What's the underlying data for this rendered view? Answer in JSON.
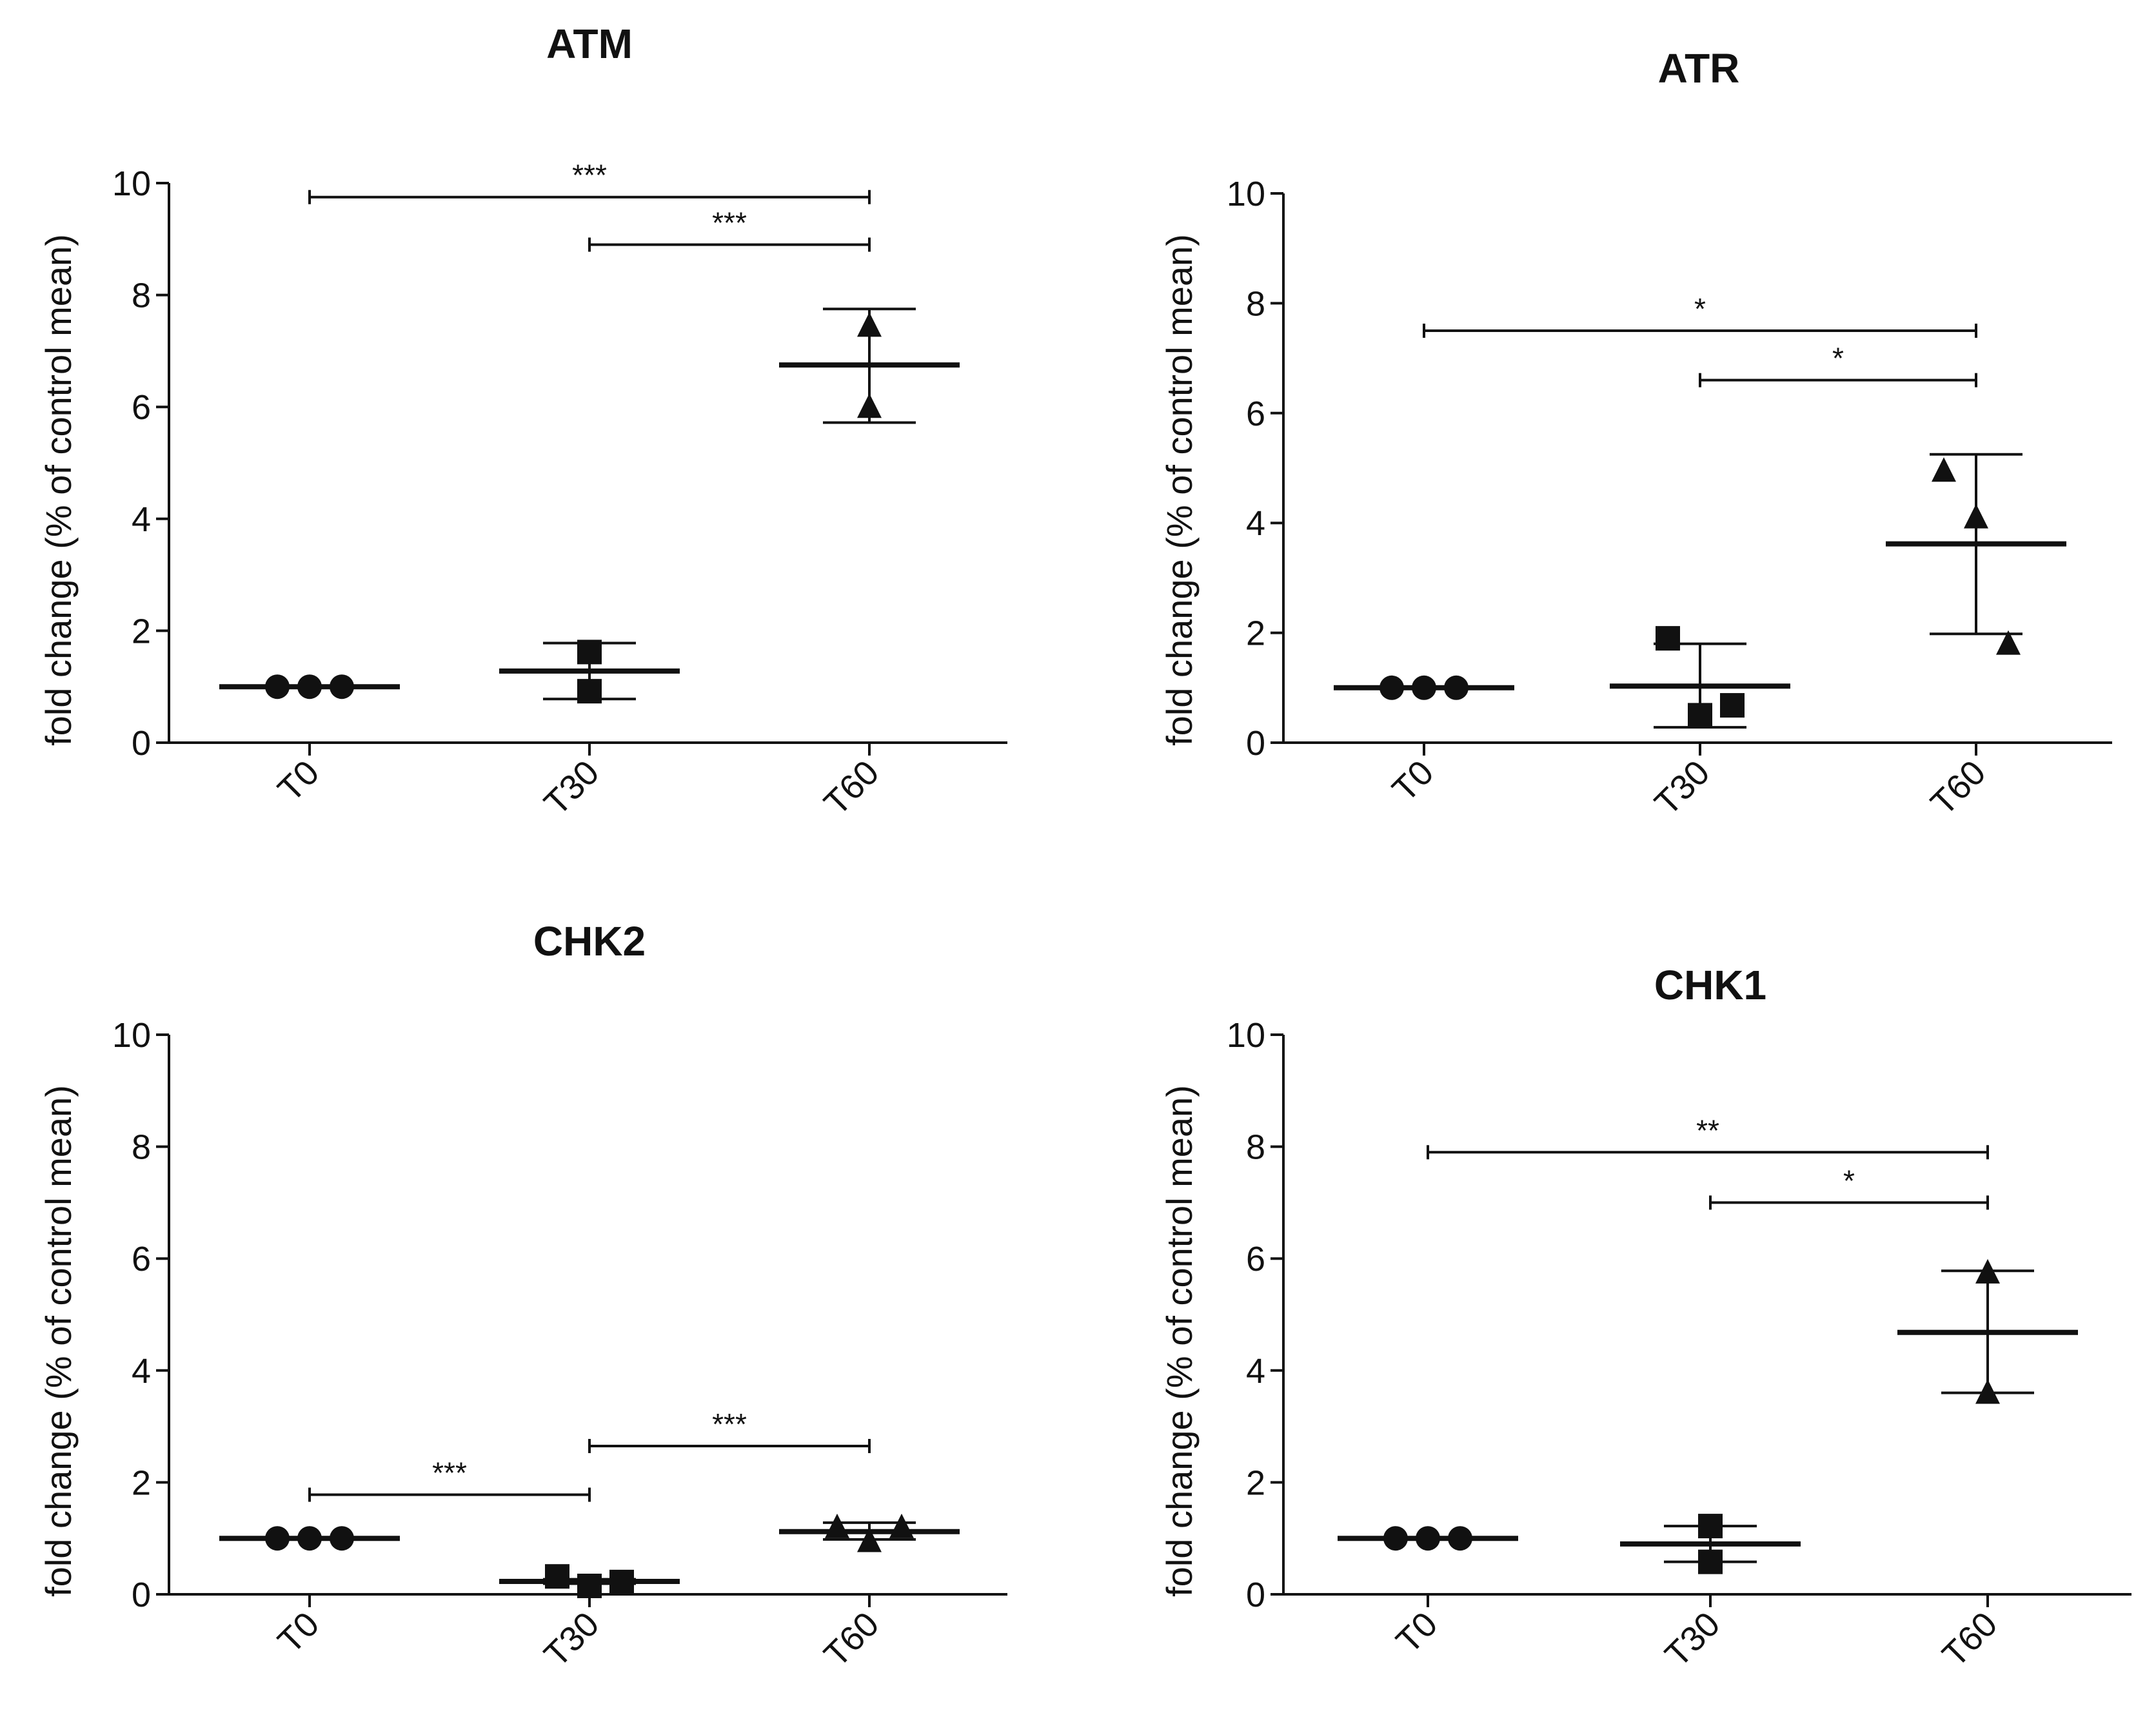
{
  "colors": {
    "ink": "#111111",
    "background": "#ffffff"
  },
  "chart_data": [
    {
      "type": "scatter",
      "title": "ATM",
      "ylabel": "fold change (% of control mean)",
      "xlabel": "",
      "categories": [
        "T0",
        "T30",
        "T60"
      ],
      "ylim": [
        0,
        10
      ],
      "yticks": [
        "0",
        "2",
        "4",
        "6",
        "8",
        "10"
      ],
      "groups": [
        {
          "name": "T0",
          "marker": "circle",
          "points": [
            1.0,
            1.0,
            1.0
          ],
          "mean": 1.0,
          "sd_low": 1.0,
          "sd_high": 1.0
        },
        {
          "name": "T30",
          "marker": "square",
          "points": [
            1.62,
            0.92
          ],
          "mean": 1.28,
          "sd_low": 0.78,
          "sd_high": 1.78
        },
        {
          "name": "T60",
          "marker": "triangle",
          "points": [
            7.45,
            6.0
          ],
          "mean": 6.75,
          "sd_low": 5.72,
          "sd_high": 7.75
        }
      ],
      "significance": [
        {
          "from": "T0",
          "to": "T60",
          "label": "***",
          "y": 9.75
        },
        {
          "from": "T30",
          "to": "T60",
          "label": "***",
          "y": 8.9
        }
      ]
    },
    {
      "type": "scatter",
      "title": "ATR",
      "ylabel": "fold change (% of control mean)",
      "xlabel": "",
      "categories": [
        "T0",
        "T30",
        "T60"
      ],
      "ylim": [
        0,
        10
      ],
      "yticks": [
        "0",
        "2",
        "4",
        "6",
        "8",
        "10"
      ],
      "groups": [
        {
          "name": "T0",
          "marker": "circle",
          "points": [
            1.0,
            1.0,
            1.0
          ],
          "mean": 1.0,
          "sd_low": 1.0,
          "sd_high": 1.0
        },
        {
          "name": "T30",
          "marker": "square",
          "points": [
            1.9,
            0.5,
            0.68
          ],
          "mean": 1.03,
          "sd_low": 0.28,
          "sd_high": 1.8
        },
        {
          "name": "T60",
          "marker": "triangle",
          "points": [
            4.95,
            4.1,
            1.8
          ],
          "mean": 3.62,
          "sd_low": 1.98,
          "sd_high": 5.25
        }
      ],
      "significance": [
        {
          "from": "T0",
          "to": "T60",
          "label": "*",
          "y": 7.5
        },
        {
          "from": "T30",
          "to": "T60",
          "label": "*",
          "y": 6.6
        }
      ]
    },
    {
      "type": "scatter",
      "title": "CHK2",
      "ylabel": "fold change (% of control mean)",
      "xlabel": "",
      "categories": [
        "T0",
        "T30",
        "T60"
      ],
      "ylim": [
        0,
        10
      ],
      "yticks": [
        "0",
        "2",
        "4",
        "6",
        "8",
        "10"
      ],
      "groups": [
        {
          "name": "T0",
          "marker": "circle",
          "points": [
            1.0,
            1.0,
            1.0
          ],
          "mean": 1.0,
          "sd_low": 1.0,
          "sd_high": 1.0
        },
        {
          "name": "T30",
          "marker": "square",
          "points": [
            0.32,
            0.15,
            0.22
          ],
          "mean": 0.23,
          "sd_low": 0.19,
          "sd_high": 0.27
        },
        {
          "name": "T60",
          "marker": "triangle",
          "points": [
            1.2,
            0.95,
            1.2
          ],
          "mean": 1.12,
          "sd_low": 0.98,
          "sd_high": 1.28
        }
      ],
      "significance": [
        {
          "from": "T0",
          "to": "T30",
          "label": "***",
          "y": 1.78
        },
        {
          "from": "T30",
          "to": "T60",
          "label": "***",
          "y": 2.65
        }
      ]
    },
    {
      "type": "scatter",
      "title": "CHK1",
      "ylabel": "fold change (% of control mean)",
      "xlabel": "",
      "categories": [
        "T0",
        "T30",
        "T60"
      ],
      "ylim": [
        0,
        10
      ],
      "yticks": [
        "0",
        "2",
        "4",
        "6",
        "8",
        "10"
      ],
      "groups": [
        {
          "name": "T0",
          "marker": "circle",
          "points": [
            1.0,
            1.0,
            1.0
          ],
          "mean": 1.0,
          "sd_low": 1.0,
          "sd_high": 1.0
        },
        {
          "name": "T30",
          "marker": "square",
          "points": [
            1.22,
            0.58
          ],
          "mean": 0.9,
          "sd_low": 0.58,
          "sd_high": 1.22
        },
        {
          "name": "T60",
          "marker": "triangle",
          "points": [
            5.75,
            3.6
          ],
          "mean": 4.68,
          "sd_low": 3.6,
          "sd_high": 5.78
        }
      ],
      "significance": [
        {
          "from": "T0",
          "to": "T60",
          "label": "**",
          "y": 7.9
        },
        {
          "from": "T30",
          "to": "T60",
          "label": "*",
          "y": 7.0
        }
      ]
    }
  ]
}
